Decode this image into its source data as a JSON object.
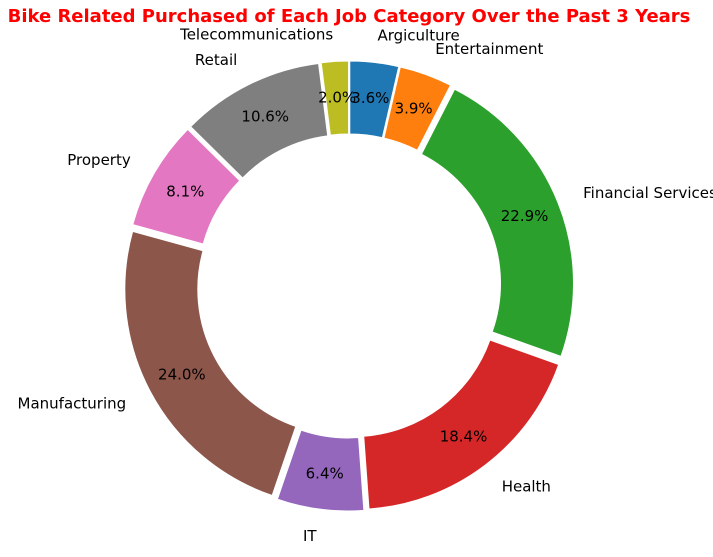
{
  "chart_data": {
    "type": "pie",
    "style": "donut",
    "title": "Bike Related Purchased of Each Job Category Over the Past 3 Years",
    "start_angle_deg": 90,
    "direction": "clockwise",
    "slices": [
      {
        "label": "Argiculture",
        "value": 3.6,
        "display": "3.6%",
        "color": "#1f77b4"
      },
      {
        "label": "Entertainment",
        "value": 3.9,
        "display": "3.9%",
        "color": "#ff7f0e"
      },
      {
        "label": "Financial Services",
        "value": 22.9,
        "display": "22.9%",
        "color": "#2ca02c"
      },
      {
        "label": "Health",
        "value": 18.4,
        "display": "18.4%",
        "color": "#d62728"
      },
      {
        "label": "IT",
        "value": 6.4,
        "display": "6.4%",
        "color": "#9467bd"
      },
      {
        "label": "Manufacturing",
        "value": 24.0,
        "display": "24.0%",
        "color": "#8c564b"
      },
      {
        "label": "Property",
        "value": 8.1,
        "display": "8.1%",
        "color": "#e377c2"
      },
      {
        "label": "Retail",
        "value": 10.6,
        "display": "10.6%",
        "color": "#7f7f7f"
      },
      {
        "label": "Telecommunications",
        "value": 2.0,
        "display": "2.0%",
        "color": "#bcbd22"
      }
    ]
  }
}
